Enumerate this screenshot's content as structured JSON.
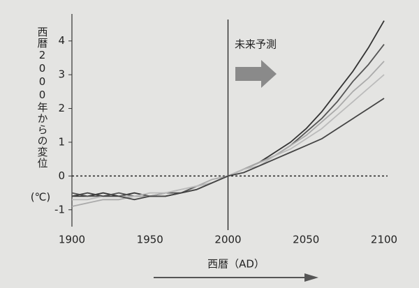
{
  "chart_data": {
    "type": "line",
    "ylabel": "西暦2000年からの変位",
    "yunit": "(℃)",
    "xlabel": "西暦（AD）",
    "annotation": "未来予測",
    "x": [
      1900,
      1910,
      1920,
      1930,
      1940,
      1950,
      1960,
      1970,
      1980,
      1990,
      2000,
      2010,
      2020,
      2030,
      2040,
      2050,
      2060,
      2070,
      2080,
      2090,
      2100
    ],
    "xlim": [
      1900,
      2100
    ],
    "xticks": [
      1900,
      1950,
      2000,
      2050,
      2100
    ],
    "ylim": [
      -1.5,
      4.8
    ],
    "yticks": [
      -1,
      0,
      1,
      2,
      3,
      4
    ],
    "vline": 2000,
    "hline": 0,
    "series": [
      {
        "color": "#333333",
        "values": [
          -0.6,
          -0.6,
          -0.5,
          -0.6,
          -0.5,
          -0.6,
          -0.6,
          -0.5,
          -0.4,
          -0.2,
          0,
          0.2,
          0.4,
          0.7,
          1.0,
          1.4,
          1.9,
          2.5,
          3.1,
          3.8,
          4.6
        ]
      },
      {
        "color": "#555555",
        "values": [
          -0.5,
          -0.6,
          -0.6,
          -0.5,
          -0.6,
          -0.6,
          -0.5,
          -0.5,
          -0.3,
          -0.2,
          0,
          0.2,
          0.4,
          0.6,
          0.9,
          1.3,
          1.7,
          2.2,
          2.8,
          3.3,
          3.9
        ]
      },
      {
        "color": "#aaaaaa",
        "values": [
          -0.9,
          -0.8,
          -0.7,
          -0.7,
          -0.6,
          -0.6,
          -0.5,
          -0.4,
          -0.3,
          -0.1,
          0,
          0.2,
          0.4,
          0.6,
          0.9,
          1.2,
          1.6,
          2.0,
          2.5,
          2.9,
          3.4
        ]
      },
      {
        "color": "#bbbbbb",
        "values": [
          -0.7,
          -0.7,
          -0.6,
          -0.6,
          -0.6,
          -0.5,
          -0.5,
          -0.4,
          -0.3,
          -0.2,
          0,
          0.2,
          0.3,
          0.6,
          0.8,
          1.1,
          1.4,
          1.8,
          2.2,
          2.6,
          3.0
        ]
      },
      {
        "color": "#444444",
        "values": [
          -0.6,
          -0.5,
          -0.6,
          -0.6,
          -0.7,
          -0.6,
          -0.6,
          -0.5,
          -0.4,
          -0.2,
          0,
          0.1,
          0.3,
          0.5,
          0.7,
          0.9,
          1.1,
          1.4,
          1.7,
          2.0,
          2.3
        ]
      }
    ]
  }
}
